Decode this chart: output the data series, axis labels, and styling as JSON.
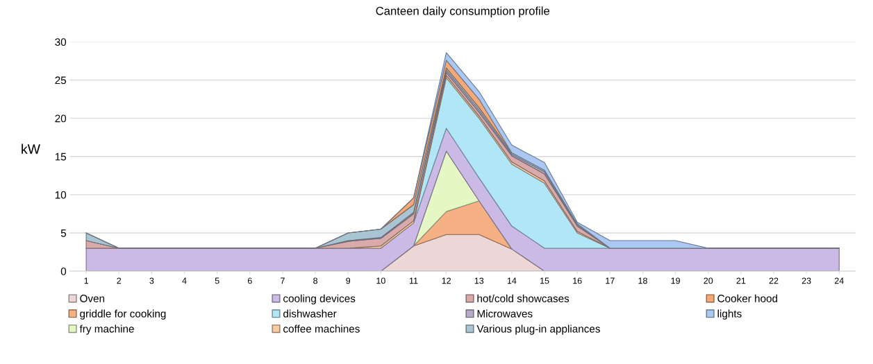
{
  "chart_data": {
    "type": "area",
    "stacked": true,
    "title": "Canteen daily consumption profile",
    "ylabel": "kW",
    "categories": [
      "1",
      "2",
      "3",
      "4",
      "5",
      "6",
      "7",
      "8",
      "9",
      "10",
      "11",
      "12",
      "13",
      "14",
      "15",
      "16",
      "17",
      "18",
      "19",
      "20",
      "21",
      "22",
      "23",
      "24"
    ],
    "ylim": [
      0,
      30
    ],
    "yticks": [
      0,
      5,
      10,
      15,
      20,
      25,
      30
    ],
    "grid": "y",
    "legend": "bottom",
    "series": [
      {
        "name": "Oven",
        "color": "#ecd6d6",
        "values": [
          0,
          0,
          0,
          0,
          0,
          0,
          0,
          0,
          0,
          0,
          3.3,
          4.8,
          4.8,
          2.9,
          0,
          0,
          0,
          0,
          0,
          0,
          0,
          0,
          0,
          0
        ]
      },
      {
        "name": "griddle for cooking",
        "color": "#f5b183",
        "values": [
          0,
          0,
          0,
          0,
          0,
          0,
          0,
          0,
          0,
          0,
          0,
          3,
          4.4,
          0,
          0,
          0,
          0,
          0,
          0,
          0,
          0,
          0,
          0,
          0
        ]
      },
      {
        "name": "fry machine",
        "color": "#e4f7c4",
        "values": [
          0,
          0,
          0,
          0,
          0,
          0,
          0,
          0,
          0,
          0,
          0,
          7.9,
          0,
          0,
          0,
          0,
          0,
          0,
          0,
          0,
          0,
          0,
          0,
          0
        ]
      },
      {
        "name": "cooling devices",
        "color": "#cbb9e6",
        "values": [
          3,
          3,
          3,
          3,
          3,
          3,
          3,
          3,
          3,
          3,
          3,
          3,
          3,
          3,
          3,
          3,
          3,
          3,
          3,
          3,
          3,
          3,
          3,
          3
        ]
      },
      {
        "name": "dishwasher",
        "color": "#b0e6f6",
        "values": [
          0,
          0,
          0,
          0,
          0,
          0,
          0,
          0,
          0,
          0,
          0,
          6.6,
          7.8,
          8.1,
          8.5,
          2,
          0,
          0,
          0,
          0,
          0,
          0,
          0,
          0
        ]
      },
      {
        "name": "coffee machines",
        "color": "#f8cda2",
        "values": [
          0,
          0,
          0,
          0,
          0,
          0,
          0,
          0,
          0,
          0.3,
          0.3,
          0.3,
          0.3,
          0.3,
          0.3,
          0.2,
          0,
          0,
          0,
          0,
          0,
          0,
          0,
          0
        ]
      },
      {
        "name": "hot/cold showcases",
        "color": "#d9aaaa",
        "values": [
          1,
          0,
          0,
          0,
          0,
          0,
          0,
          0,
          0.9,
          1,
          0.9,
          0.4,
          0.5,
          0.8,
          0.9,
          0.7,
          0,
          0,
          0,
          0,
          0,
          0,
          0,
          0
        ]
      },
      {
        "name": "Microwaves",
        "color": "#b7abc9",
        "values": [
          0,
          0,
          0,
          0,
          0,
          0,
          0,
          0,
          0.1,
          0.1,
          0.2,
          0.3,
          0.3,
          0.2,
          0.3,
          0.1,
          0,
          0,
          0,
          0,
          0,
          0,
          0,
          0
        ]
      },
      {
        "name": "Various plug-in appliances",
        "color": "#a9c5d3",
        "values": [
          1,
          0,
          0,
          0,
          0,
          0,
          0,
          0,
          1,
          1.1,
          1,
          0.3,
          0.3,
          0.2,
          0.2,
          0.2,
          0,
          0,
          0,
          0,
          0,
          0,
          0,
          0
        ]
      },
      {
        "name": "Cooker hood",
        "color": "#f5a878",
        "values": [
          0,
          0,
          0,
          0,
          0,
          0,
          0,
          0,
          0,
          0,
          0.9,
          1,
          1.1,
          0,
          0,
          0,
          0,
          0,
          0,
          0,
          0,
          0,
          0,
          0
        ]
      },
      {
        "name": "lights",
        "color": "#abc8f3",
        "values": [
          0,
          0,
          0,
          0,
          0,
          0,
          0,
          0,
          0,
          0,
          0,
          1,
          1,
          1,
          1,
          0.2,
          1,
          1,
          1,
          0,
          0,
          0,
          0,
          0
        ]
      }
    ]
  }
}
